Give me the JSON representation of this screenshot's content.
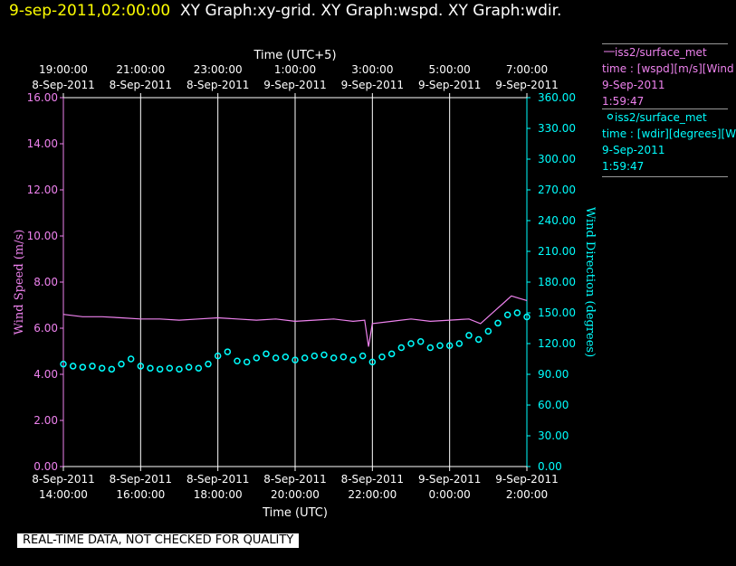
{
  "header": {
    "timestamp": "9-sep-2011,02:00:00",
    "graphs": "XY Graph:xy-grid.  XY Graph:wspd.  XY Graph:wdir."
  },
  "legend": [
    {
      "line1": "iss2/surface_met",
      "line2": "time : [wspd][m/s][Wind",
      "line3": "9-Sep-2011",
      "line4": "1:59:47",
      "marker": "line",
      "color": "#ee82ee"
    },
    {
      "line1": "iss2/surface_met",
      "line2": "time : [wdir][degrees][W",
      "line3": "9-Sep-2011",
      "line4": "1:59:47",
      "marker": "circle",
      "color": "#00ffff"
    }
  ],
  "footer": "REAL-TIME DATA, NOT CHECKED FOR QUALITY",
  "chart_data": {
    "type": "line",
    "top_axis_title": "Time (UTC+5)",
    "xlabel": "Time (UTC)",
    "ylabel_left": "Wind Speed (m/s)",
    "ylabel_right": "Wind Direction (degrees)",
    "xlim_hours": [
      0,
      12
    ],
    "x_grid_hours": [
      2,
      4,
      6,
      8,
      10,
      12
    ],
    "bottom_ticks": [
      {
        "h": 0,
        "date": "8-Sep-2011",
        "time": "14:00:00"
      },
      {
        "h": 2,
        "date": "8-Sep-2011",
        "time": "16:00:00"
      },
      {
        "h": 4,
        "date": "8-Sep-2011",
        "time": "18:00:00"
      },
      {
        "h": 6,
        "date": "8-Sep-2011",
        "time": "20:00:00"
      },
      {
        "h": 8,
        "date": "8-Sep-2011",
        "time": "22:00:00"
      },
      {
        "h": 10,
        "date": "9-Sep-2011",
        "time": "0:00:00"
      },
      {
        "h": 12,
        "date": "9-Sep-2011",
        "time": "2:00:00"
      }
    ],
    "top_ticks": [
      {
        "h": 0,
        "time": "19:00:00",
        "date": "8-Sep-2011"
      },
      {
        "h": 2,
        "time": "21:00:00",
        "date": "8-Sep-2011"
      },
      {
        "h": 4,
        "time": "23:00:00",
        "date": "8-Sep-2011"
      },
      {
        "h": 6,
        "time": "1:00:00",
        "date": "9-Sep-2011"
      },
      {
        "h": 8,
        "time": "3:00:00",
        "date": "9-Sep-2011"
      },
      {
        "h": 10,
        "time": "5:00:00",
        "date": "9-Sep-2011"
      },
      {
        "h": 12,
        "time": "7:00:00",
        "date": "9-Sep-2011"
      }
    ],
    "left_axis": {
      "min": 0,
      "max": 16,
      "ticks": [
        "0.00",
        "2.00",
        "4.00",
        "6.00",
        "8.00",
        "10.00",
        "12.00",
        "14.00",
        "16.00"
      ],
      "color": "#ee82ee"
    },
    "right_axis": {
      "min": 0,
      "max": 360,
      "ticks": [
        "0.00",
        "30.00",
        "60.00",
        "90.00",
        "120.00",
        "150.00",
        "180.00",
        "210.00",
        "240.00",
        "270.00",
        "300.00",
        "330.00",
        "360.00"
      ],
      "color": "#00ffff"
    },
    "series": [
      {
        "name": "iss2/surface_met time : [wspd][m/s][Wind",
        "axis": "left",
        "style": "line",
        "color": "#ee82ee",
        "x": [
          0,
          0.5,
          1,
          1.5,
          2,
          2.5,
          3,
          3.5,
          4,
          4.5,
          5,
          5.5,
          6,
          6.5,
          7,
          7.5,
          7.8,
          7.9,
          8,
          8.5,
          9,
          9.5,
          10,
          10.5,
          10.8,
          11,
          11.2,
          11.4,
          11.6,
          11.8,
          12
        ],
        "values": [
          6.6,
          6.5,
          6.5,
          6.45,
          6.4,
          6.4,
          6.35,
          6.4,
          6.45,
          6.4,
          6.35,
          6.4,
          6.3,
          6.35,
          6.4,
          6.3,
          6.35,
          5.2,
          6.2,
          6.3,
          6.4,
          6.3,
          6.35,
          6.4,
          6.2,
          6.5,
          6.8,
          7.1,
          7.4,
          7.3,
          7.2
        ]
      },
      {
        "name": "iss2/surface_met time : [wdir][degrees][W",
        "axis": "right",
        "style": "scatter",
        "color": "#00ffff",
        "x": [
          0,
          0.25,
          0.5,
          0.75,
          1,
          1.25,
          1.5,
          1.75,
          2,
          2.25,
          2.5,
          2.75,
          3,
          3.25,
          3.5,
          3.75,
          4,
          4.25,
          4.5,
          4.75,
          5,
          5.25,
          5.5,
          5.75,
          6,
          6.25,
          6.5,
          6.75,
          7,
          7.25,
          7.5,
          7.75,
          8,
          8.25,
          8.5,
          8.75,
          9,
          9.25,
          9.5,
          9.75,
          10,
          10.25,
          10.5,
          10.75,
          11,
          11.25,
          11.5,
          11.75,
          12
        ],
        "values": [
          100,
          98,
          97,
          98,
          96,
          95,
          100,
          105,
          98,
          96,
          95,
          96,
          95,
          97,
          96,
          100,
          108,
          112,
          103,
          102,
          106,
          110,
          106,
          107,
          104,
          106,
          108,
          109,
          106,
          107,
          104,
          108,
          102,
          107,
          110,
          116,
          120,
          122,
          116,
          118,
          118,
          120,
          128,
          124,
          132,
          140,
          148,
          150,
          146
        ]
      }
    ]
  }
}
